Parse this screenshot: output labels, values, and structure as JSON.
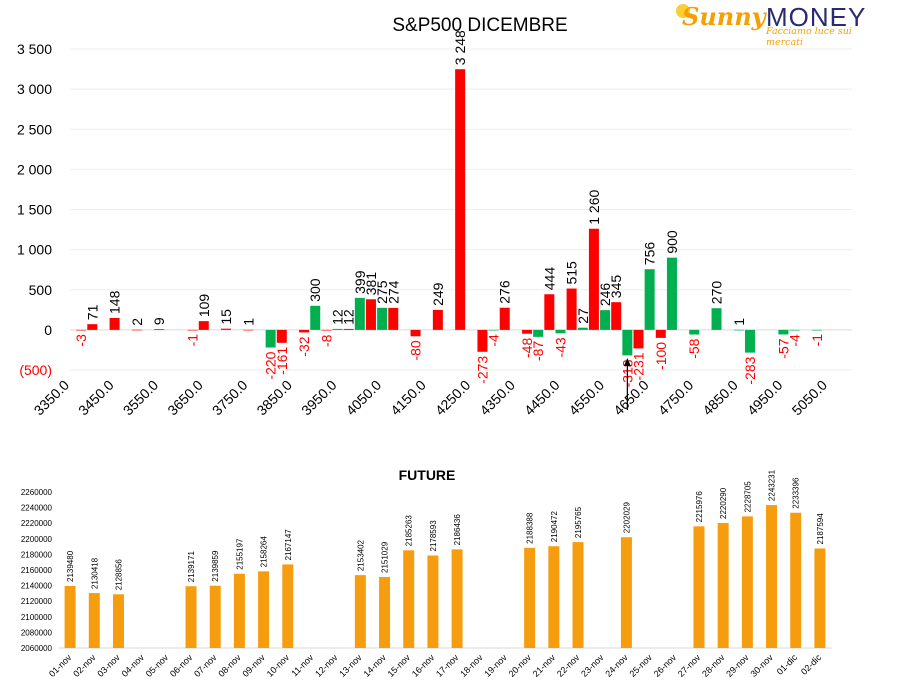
{
  "logo": {
    "brand_first": "Sunny",
    "brand_second": "MONEY",
    "tagline": "Facciamo luce sui mercati"
  },
  "colors": {
    "call_up": "#ff0000",
    "put_up": "#00b050",
    "future_bar": "#f59d0e",
    "negative_label": "#ff0000",
    "text": "#000000"
  },
  "chart_data": [
    {
      "type": "bar",
      "title": "S&P500 DICEMBRE",
      "ylim": [
        -500,
        3500
      ],
      "yticks": [
        "3 500",
        "3 000",
        "2 500",
        "2 000",
        "1 500",
        "1 000",
        "500",
        "0",
        "(500)"
      ],
      "ytick_values": [
        3500,
        3000,
        2500,
        2000,
        1500,
        1000,
        500,
        0,
        -500
      ],
      "xmin": 3350,
      "xmax": 5050,
      "xticks": [
        "3350.0",
        "3450.0",
        "3550.0",
        "3650.0",
        "3750.0",
        "3850.0",
        "3950.0",
        "4050.0",
        "4150.0",
        "4250.0",
        "4350.0",
        "4450.0",
        "4550.0",
        "4650.0",
        "4750.0",
        "4850.0",
        "4950.0",
        "5050.0"
      ],
      "xtick_values": [
        3350,
        3450,
        3550,
        3650,
        3750,
        3850,
        3950,
        4050,
        4150,
        4250,
        4350,
        4450,
        4550,
        4650,
        4750,
        4850,
        4950,
        5050
      ],
      "grid": true,
      "legend": "none",
      "series": [
        {
          "color": "red",
          "points": [
            {
              "x": 3375,
              "y": -3,
              "label": "-3"
            },
            {
              "x": 3400,
              "y": 71,
              "label": "71"
            },
            {
              "x": 3450,
              "y": 148,
              "label": "148"
            },
            {
              "x": 3500,
              "y": 2,
              "label": "2"
            },
            {
              "x": 3550,
              "y": 9,
              "label": "9"
            },
            {
              "x": 3625,
              "y": -1,
              "label": "-1"
            },
            {
              "x": 3650,
              "y": 109,
              "label": "109"
            },
            {
              "x": 3700,
              "y": 15,
              "label": "15"
            },
            {
              "x": 3750,
              "y": 1,
              "label": "1"
            },
            {
              "x": 3825,
              "y": -161,
              "label": "-161"
            },
            {
              "x": 3875,
              "y": -32,
              "label": "-32"
            },
            {
              "x": 3925,
              "y": -8,
              "label": "-8"
            },
            {
              "x": 3975,
              "y": 12,
              "label": "12"
            },
            {
              "x": 4025,
              "y": 381,
              "label": "381"
            },
            {
              "x": 4075,
              "y": 274,
              "label": "274"
            },
            {
              "x": 4125,
              "y": -80,
              "label": "-80"
            },
            {
              "x": 4175,
              "y": 249,
              "label": "249"
            },
            {
              "x": 4225,
              "y": 3248,
              "label": "3 248"
            },
            {
              "x": 4275,
              "y": -273,
              "label": "-273"
            },
            {
              "x": 4325,
              "y": 276,
              "label": "276"
            },
            {
              "x": 4375,
              "y": -48,
              "label": "-48"
            },
            {
              "x": 4425,
              "y": 444,
              "label": "444"
            },
            {
              "x": 4475,
              "y": 515,
              "label": "515"
            },
            {
              "x": 4525,
              "y": 1260,
              "label": "1 260"
            },
            {
              "x": 4575,
              "y": 345,
              "label": "345"
            },
            {
              "x": 4625,
              "y": -231,
              "label": "-231"
            },
            {
              "x": 4675,
              "y": -100,
              "label": "-100"
            }
          ]
        },
        {
          "color": "green",
          "points": [
            {
              "x": 3800,
              "y": -220,
              "label": "-220"
            },
            {
              "x": 3900,
              "y": 300,
              "label": "300"
            },
            {
              "x": 3950,
              "y": 12,
              "label": "12"
            },
            {
              "x": 4000,
              "y": 399,
              "label": "399"
            },
            {
              "x": 4050,
              "y": 275,
              "label": "275"
            },
            {
              "x": 4300,
              "y": -4,
              "label": "-4"
            },
            {
              "x": 4400,
              "y": -87,
              "label": "-87"
            },
            {
              "x": 4450,
              "y": -43,
              "label": "-43"
            },
            {
              "x": 4500,
              "y": 27,
              "label": "27"
            },
            {
              "x": 4550,
              "y": 246,
              "label": "246"
            },
            {
              "x": 4600,
              "y": -318,
              "label": "-318"
            },
            {
              "x": 4650,
              "y": 756,
              "label": "756"
            },
            {
              "x": 4700,
              "y": 900,
              "label": "900"
            },
            {
              "x": 4750,
              "y": -58,
              "label": "-58"
            },
            {
              "x": 4800,
              "y": 270,
              "label": "270"
            },
            {
              "x": 4850,
              "y": 1,
              "label": "1"
            },
            {
              "x": 4875,
              "y": -283,
              "label": "-283"
            },
            {
              "x": 4950,
              "y": -57,
              "label": "-57"
            },
            {
              "x": 4975,
              "y": -4,
              "label": "-4"
            },
            {
              "x": 5025,
              "y": -1,
              "label": "-1"
            }
          ]
        }
      ],
      "annotation": {
        "type": "arrow-up",
        "x": 4600
      }
    },
    {
      "type": "bar",
      "title": "FUTURE",
      "ylim": [
        2060000,
        2260000
      ],
      "yticks": [
        "2260000",
        "2240000",
        "2220000",
        "2200000",
        "2180000",
        "2160000",
        "2140000",
        "2120000",
        "2100000",
        "2080000",
        "2060000"
      ],
      "ytick_values": [
        2260000,
        2240000,
        2220000,
        2200000,
        2180000,
        2160000,
        2140000,
        2120000,
        2100000,
        2080000,
        2060000
      ],
      "categories": [
        "01-nov",
        "02-nov",
        "03-nov",
        "04-nov",
        "05-nov",
        "06-nov",
        "07-nov",
        "08-nov",
        "09-nov",
        "10-nov",
        "11-nov",
        "12-nov",
        "13-nov",
        "14-nov",
        "15-nov",
        "16-nov",
        "17-nov",
        "18-nov",
        "19-nov",
        "20-nov",
        "21-nov",
        "22-nov",
        "23-nov",
        "24-nov",
        "25-nov",
        "26-nov",
        "27-nov",
        "28-nov",
        "29-nov",
        "30-nov",
        "01-dic",
        "02-dic"
      ],
      "values": [
        2139480,
        2130418,
        2128856,
        null,
        null,
        2139171,
        2139859,
        2155197,
        2158264,
        2167147,
        null,
        null,
        2153402,
        2151029,
        2185263,
        2178593,
        2186436,
        null,
        null,
        2188388,
        2190472,
        2195765,
        null,
        2202029,
        null,
        null,
        2215976,
        2220290,
        2228705,
        2243231,
        2233396,
        2187594
      ],
      "grid": false,
      "legend": "none"
    }
  ]
}
